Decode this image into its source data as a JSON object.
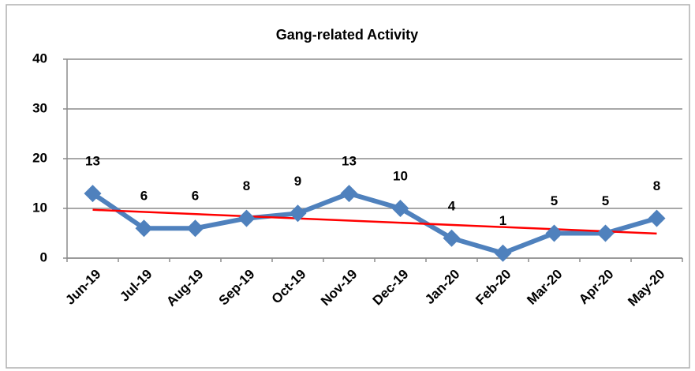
{
  "chart_data": {
    "type": "line",
    "title": "Gang-related Activity",
    "categories": [
      "Jun-19",
      "Jul-19",
      "Aug-19",
      "Sep-19",
      "Oct-19",
      "Nov-19",
      "Dec-19",
      "Jan-20",
      "Feb-20",
      "Mar-20",
      "Apr-20",
      "May-20"
    ],
    "values": [
      13,
      6,
      6,
      8,
      9,
      13,
      10,
      4,
      1,
      5,
      5,
      8
    ],
    "color": "#4f81bd",
    "trendline": "linear",
    "trendline_color": "#ff0000",
    "ylim": [
      0,
      40
    ],
    "yticks": [
      0,
      10,
      20,
      30,
      40
    ],
    "grid": true,
    "data_labels": true
  }
}
